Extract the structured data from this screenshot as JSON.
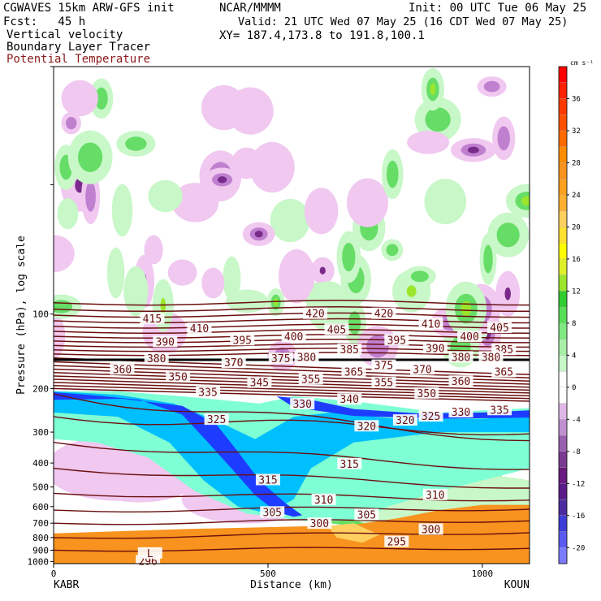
{
  "header": {
    "model": "CGWAVES 15km ARW-GFS init",
    "forecast": "Fcst:   45 h",
    "field1": "Vertical velocity",
    "field2": "Boundary Layer Tracer",
    "field3": "Potential Temperature",
    "center": "NCAR/MMMM",
    "init": "Init: 00 UTC Tue 06 May 25",
    "valid": "Valid: 21 UTC Wed 07 May 25 (16 CDT Wed 07 May 25)",
    "xy": "XY= 187.4,173.8 to 191.8,100.1"
  },
  "colors": {
    "theta_contour": "#6b0f0f",
    "tropopause": "#000000",
    "tracer_outer": "#7fffd4",
    "tracer_mid": "#00bfff",
    "tracer_inner": "#1e3cff",
    "green_light": "#c8f7c8",
    "green_mid": "#66dd66",
    "magenta_light": "#f0c8f0",
    "magenta_mid": "#c080d0",
    "magenta_dark": "#7a2a8a",
    "ground_orange": "#f7931e",
    "ground_tan": "#ffd060"
  },
  "chart_data": {
    "type": "heatmap",
    "title": "",
    "xlabel": "Distance (km)",
    "ylabel": "Pressure (hPa), log scale",
    "x_start_label": "KABR",
    "x_end_label": "KOUN",
    "xlim": [
      0,
      1110
    ],
    "ylim": [
      1020,
      10
    ],
    "y_scale": "log",
    "x_ticks": [
      0,
      500,
      1000
    ],
    "y_ticks": [
      100,
      200,
      300,
      400,
      500,
      600,
      700,
      800,
      900,
      1000
    ],
    "colorbar": {
      "unit": "cm s⁻¹",
      "levels": [
        -22,
        -20,
        -18,
        -16,
        -14,
        -12,
        -10,
        -8,
        -6,
        -4,
        -2,
        0,
        2,
        4,
        6,
        8,
        10,
        12,
        14,
        16,
        18,
        20,
        22,
        24,
        26,
        28,
        30,
        32,
        34,
        36,
        38,
        40
      ],
      "colors": [
        "#7b7bff",
        "#5a5af0",
        "#3d3dd8",
        "#4b2aa0",
        "#5a1a88",
        "#6a1a80",
        "#7a3a90",
        "#9a60b0",
        "#c090d0",
        "#e0b8e8",
        "#ffffff",
        "#ffffff",
        "#c8f7c8",
        "#a8f0a8",
        "#80e880",
        "#55dd55",
        "#30cc30",
        "#9be62d",
        "#dff02a",
        "#ffff00",
        "#ffe030",
        "#ffd060",
        "#ffb030",
        "#ffa020",
        "#f7931e",
        "#ff8c00",
        "#ff6a00",
        "#ff5000",
        "#ff3a00",
        "#ff2200",
        "#ff0000"
      ],
      "labels": [
        "-20",
        "-16",
        "-12",
        "-8",
        "-4",
        "0",
        "4",
        "8",
        "12",
        "16",
        "20",
        "24",
        "28",
        "32",
        "36"
      ]
    },
    "theta_labels": [
      {
        "value": "415",
        "x": 230,
        "p": 105
      },
      {
        "value": "410",
        "x": 340,
        "p": 115
      },
      {
        "value": "390",
        "x": 260,
        "p": 130
      },
      {
        "value": "395",
        "x": 440,
        "p": 128
      },
      {
        "value": "400",
        "x": 560,
        "p": 124
      },
      {
        "value": "405",
        "x": 660,
        "p": 116
      },
      {
        "value": "420",
        "x": 610,
        "p": 100
      },
      {
        "value": "420",
        "x": 770,
        "p": 100
      },
      {
        "value": "410",
        "x": 880,
        "p": 110
      },
      {
        "value": "385",
        "x": 690,
        "p": 140
      },
      {
        "value": "395",
        "x": 800,
        "p": 128
      },
      {
        "value": "390",
        "x": 890,
        "p": 138
      },
      {
        "value": "400",
        "x": 970,
        "p": 124
      },
      {
        "value": "405",
        "x": 1040,
        "p": 114
      },
      {
        "value": "385",
        "x": 1050,
        "p": 140
      },
      {
        "value": "380",
        "x": 590,
        "p": 150
      },
      {
        "value": "380",
        "x": 950,
        "p": 150
      },
      {
        "value": "380",
        "x": 1020,
        "p": 150
      },
      {
        "value": "380",
        "x": 240,
        "p": 152
      },
      {
        "value": "370",
        "x": 420,
        "p": 158
      },
      {
        "value": "375",
        "x": 530,
        "p": 152
      },
      {
        "value": "375",
        "x": 770,
        "p": 162
      },
      {
        "value": "360",
        "x": 160,
        "p": 168
      },
      {
        "value": "350",
        "x": 290,
        "p": 180
      },
      {
        "value": "365",
        "x": 700,
        "p": 172
      },
      {
        "value": "370",
        "x": 860,
        "p": 168
      },
      {
        "value": "365",
        "x": 1050,
        "p": 172
      },
      {
        "value": "345",
        "x": 480,
        "p": 190
      },
      {
        "value": "355",
        "x": 600,
        "p": 184
      },
      {
        "value": "355",
        "x": 770,
        "p": 190
      },
      {
        "value": "360",
        "x": 950,
        "p": 188
      },
      {
        "value": "335",
        "x": 360,
        "p": 208
      },
      {
        "value": "340",
        "x": 690,
        "p": 222
      },
      {
        "value": "350",
        "x": 870,
        "p": 210
      },
      {
        "value": "330",
        "x": 580,
        "p": 232
      },
      {
        "value": "330",
        "x": 950,
        "p": 250
      },
      {
        "value": "335",
        "x": 1040,
        "p": 245
      },
      {
        "value": "325",
        "x": 380,
        "p": 268
      },
      {
        "value": "325",
        "x": 880,
        "p": 260
      },
      {
        "value": "320",
        "x": 730,
        "p": 285
      },
      {
        "value": "320",
        "x": 820,
        "p": 270
      },
      {
        "value": "315",
        "x": 500,
        "p": 470
      },
      {
        "value": "315",
        "x": 690,
        "p": 405
      },
      {
        "value": "310",
        "x": 630,
        "p": 565
      },
      {
        "value": "310",
        "x": 890,
        "p": 540
      },
      {
        "value": "305",
        "x": 510,
        "p": 635
      },
      {
        "value": "305",
        "x": 730,
        "p": 650
      },
      {
        "value": "300",
        "x": 620,
        "p": 705
      },
      {
        "value": "300",
        "x": 880,
        "p": 745
      },
      {
        "value": "295",
        "x": 800,
        "p": 835
      },
      {
        "value": "296",
        "x": 220,
        "p": 1000
      },
      {
        "value": "L",
        "x": 225,
        "p": 930
      }
    ]
  },
  "axis": {
    "ylabel": "Pressure (hPa), log scale",
    "xlabel": "Distance (km)",
    "left": "KABR",
    "right": "KOUN"
  }
}
